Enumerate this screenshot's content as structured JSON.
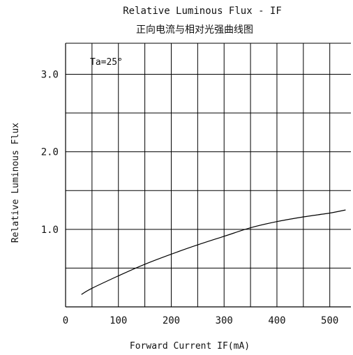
{
  "chart_data": {
    "type": "line",
    "title": "Relative Luminous Flux - IF",
    "subtitle": "正向电流与相对光强曲线图",
    "xlabel": "Forward Current IF(mA)",
    "ylabel": "Relative Luminous Flux",
    "annotation": "Ta=25°",
    "xlim": [
      0,
      540
    ],
    "ylim": [
      0,
      3.4
    ],
    "x_ticks": [
      "0",
      "100",
      "200",
      "300",
      "400",
      "500"
    ],
    "y_ticks": [
      "1.0",
      "2.0",
      "3.0"
    ],
    "grid": true,
    "series": [
      {
        "x": [
          30,
          50,
          100,
          150,
          200,
          250,
          300,
          350,
          400,
          450,
          500,
          530
        ],
        "y": [
          0.16,
          0.24,
          0.4,
          0.55,
          0.68,
          0.8,
          0.91,
          1.02,
          1.1,
          1.16,
          1.21,
          1.25
        ]
      }
    ]
  }
}
